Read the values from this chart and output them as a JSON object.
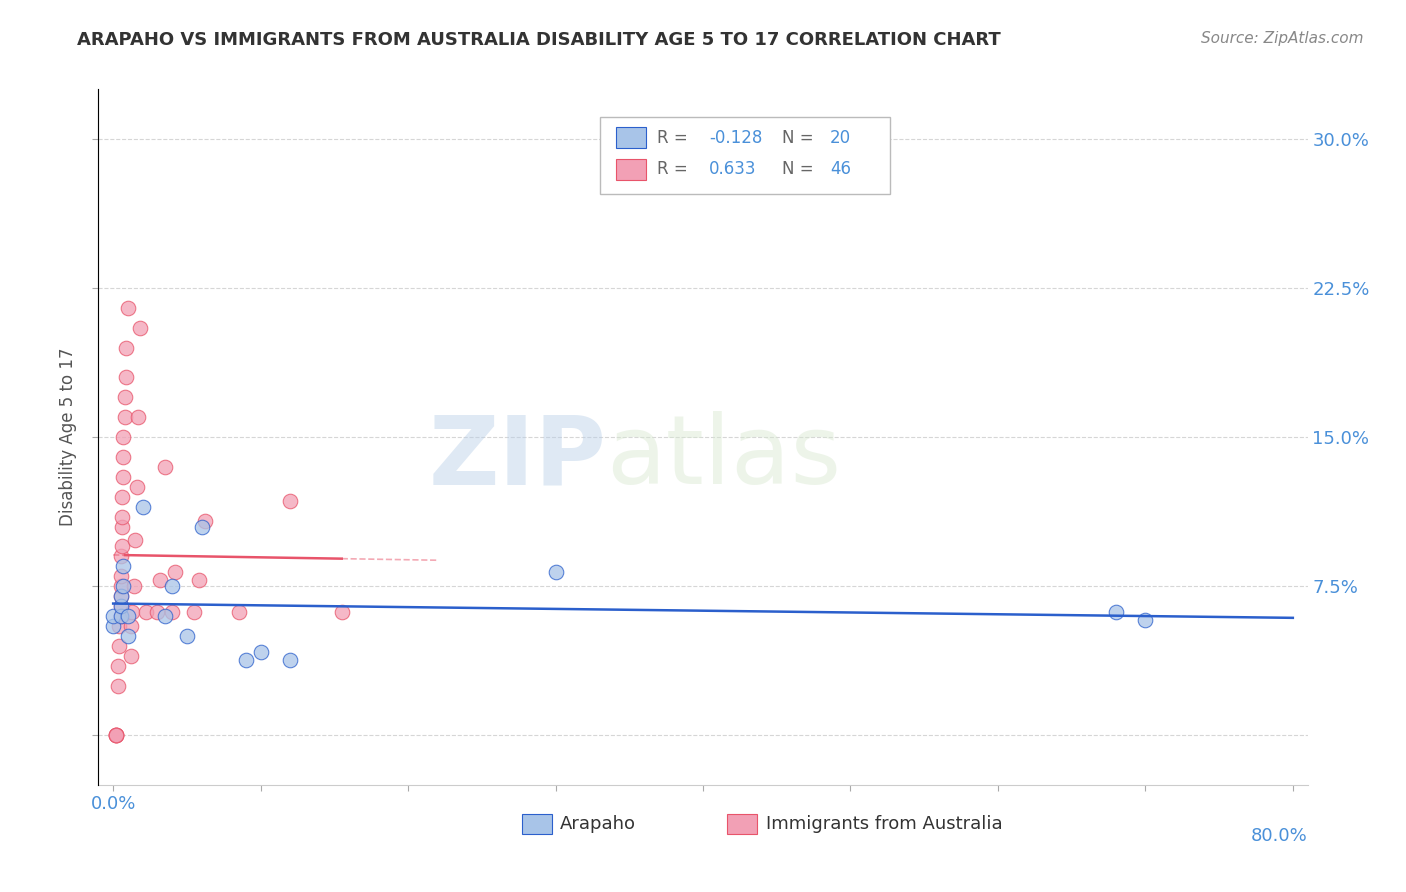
{
  "title": "ARAPAHO VS IMMIGRANTS FROM AUSTRALIA DISABILITY AGE 5 TO 17 CORRELATION CHART",
  "source": "Source: ZipAtlas.com",
  "ylabel": "Disability Age 5 to 17",
  "legend_label_blue": "Arapaho",
  "legend_label_pink": "Immigrants from Australia",
  "r_blue": -0.128,
  "n_blue": 20,
  "r_pink": 0.633,
  "n_pink": 46,
  "xlim": [
    -0.01,
    0.81
  ],
  "ylim": [
    -0.025,
    0.325
  ],
  "xticks": [
    0.0,
    0.1,
    0.2,
    0.3,
    0.4,
    0.5,
    0.6,
    0.7,
    0.8
  ],
  "yticks": [
    0.0,
    0.075,
    0.15,
    0.225,
    0.3
  ],
  "color_blue": "#a8c4e8",
  "color_pink": "#f2a0b5",
  "line_color_blue": "#2b5fcc",
  "line_color_pink": "#e8546a",
  "watermark_zip": "ZIP",
  "watermark_atlas": "atlas",
  "arapaho_x": [
    0.0,
    0.0,
    0.005,
    0.005,
    0.005,
    0.007,
    0.007,
    0.01,
    0.01,
    0.02,
    0.035,
    0.04,
    0.05,
    0.06,
    0.09,
    0.1,
    0.12,
    0.3,
    0.68,
    0.7
  ],
  "arapaho_y": [
    0.055,
    0.06,
    0.06,
    0.065,
    0.07,
    0.075,
    0.085,
    0.05,
    0.06,
    0.115,
    0.06,
    0.075,
    0.05,
    0.105,
    0.038,
    0.042,
    0.038,
    0.082,
    0.062,
    0.058
  ],
  "australia_x": [
    0.002,
    0.002,
    0.002,
    0.002,
    0.003,
    0.003,
    0.004,
    0.004,
    0.005,
    0.005,
    0.005,
    0.005,
    0.005,
    0.005,
    0.006,
    0.006,
    0.006,
    0.006,
    0.007,
    0.007,
    0.007,
    0.008,
    0.008,
    0.009,
    0.009,
    0.01,
    0.012,
    0.012,
    0.013,
    0.014,
    0.015,
    0.016,
    0.017,
    0.018,
    0.022,
    0.03,
    0.032,
    0.035,
    0.04,
    0.042,
    0.055,
    0.058,
    0.062,
    0.085,
    0.12,
    0.155
  ],
  "australia_y": [
    0.0,
    0.0,
    0.0,
    0.0,
    0.025,
    0.035,
    0.045,
    0.055,
    0.06,
    0.065,
    0.07,
    0.075,
    0.08,
    0.09,
    0.095,
    0.105,
    0.11,
    0.12,
    0.13,
    0.14,
    0.15,
    0.16,
    0.17,
    0.18,
    0.195,
    0.215,
    0.04,
    0.055,
    0.062,
    0.075,
    0.098,
    0.125,
    0.16,
    0.205,
    0.062,
    0.062,
    0.078,
    0.135,
    0.062,
    0.082,
    0.062,
    0.078,
    0.108,
    0.062,
    0.118,
    0.062
  ]
}
